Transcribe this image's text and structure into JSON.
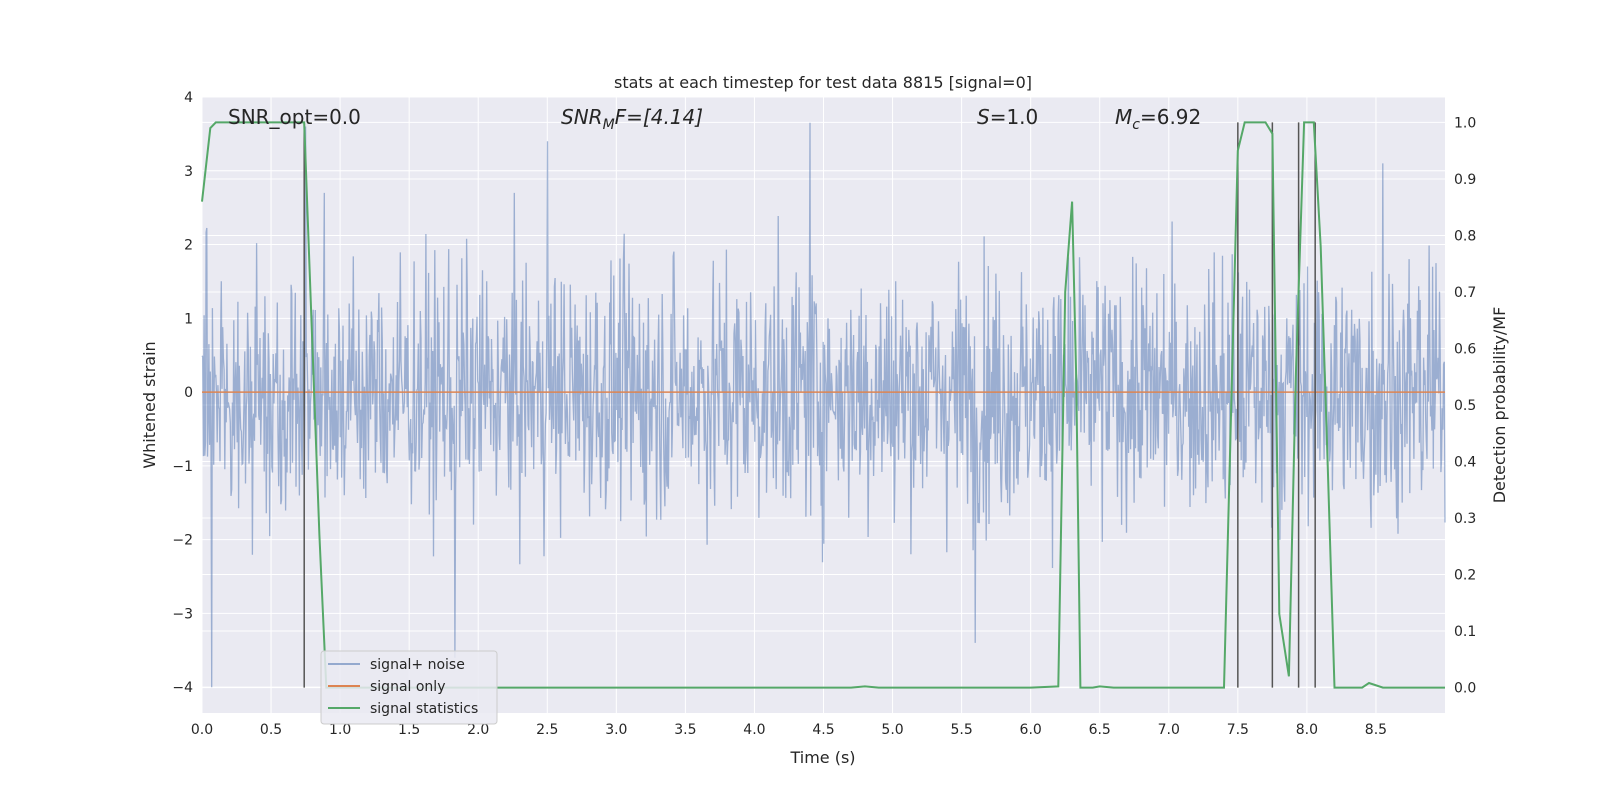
{
  "chart_data": {
    "type": "line",
    "title": "stats at each timestep for test data 8815 [signal=0]",
    "xlabel": "Time (s)",
    "ylabel": "Whitened strain",
    "ylabel_right": "Detection probability/MF",
    "xlim": [
      0,
      9.0
    ],
    "ylim": [
      -4.35,
      4.0
    ],
    "ylim_right": [
      -0.045,
      1.045
    ],
    "grid": true,
    "legend_position": "lower-left",
    "x_ticks": [
      "0.0",
      "0.5",
      "1.0",
      "1.5",
      "2.0",
      "2.5",
      "3.0",
      "3.5",
      "4.0",
      "4.5",
      "5.0",
      "5.5",
      "6.0",
      "6.5",
      "7.0",
      "7.5",
      "8.0",
      "8.5"
    ],
    "y_ticks": [
      "−4",
      "−3",
      "−2",
      "−1",
      "0",
      "1",
      "2",
      "3",
      "4"
    ],
    "y_ticks_right": [
      "0.0",
      "0.1",
      "0.2",
      "0.3",
      "0.4",
      "0.5",
      "0.6",
      "0.7",
      "0.8",
      "0.9",
      "1.0"
    ],
    "annotations": {
      "snr_opt": "SNR_opt=0.0",
      "snr_mf_main": "SNR",
      "snr_mf_sub": "M",
      "snr_mf_rest": "F=[4.14]",
      "s_main": "S",
      "s_rest": "=1.0",
      "mc_main": "M",
      "mc_sub": "c",
      "mc_rest": "=6.92"
    },
    "series": [
      {
        "name": "signal+ noise",
        "color": "#4c72b0",
        "description_axis": "left",
        "approx_envelope": [
          -2.0,
          2.2
        ],
        "extremes": [
          [
            0.07,
            -4.0
          ],
          [
            0.75,
            3.6
          ],
          [
            1.83,
            -3.6
          ],
          [
            2.5,
            3.4
          ],
          [
            4.4,
            3.65
          ],
          [
            5.6,
            -3.4
          ],
          [
            8.55,
            3.1
          ]
        ]
      },
      {
        "name": "signal only",
        "color": "#dd8452",
        "axis": "left",
        "x": [
          0.0,
          9.0
        ],
        "y": [
          0.0,
          0.0
        ]
      },
      {
        "name": "signal statistics",
        "color": "#55a868",
        "axis": "right",
        "x": [
          0.0,
          0.06,
          0.1,
          0.2,
          0.4,
          0.6,
          0.7,
          0.74,
          0.8,
          0.85,
          0.9,
          0.95,
          1.2,
          2.0,
          3.0,
          4.0,
          4.7,
          4.8,
          4.9,
          5.5,
          6.0,
          6.2,
          6.25,
          6.3,
          6.33,
          6.36,
          6.4,
          6.45,
          6.5,
          6.6,
          7.0,
          7.4,
          7.5,
          7.55,
          7.6,
          7.7,
          7.75,
          7.8,
          7.87,
          7.92,
          7.98,
          8.05,
          8.1,
          8.15,
          8.2,
          8.25,
          8.4,
          8.45,
          8.55,
          8.8,
          9.0
        ],
        "y": [
          0.86,
          0.99,
          1.0,
          1.0,
          1.0,
          1.0,
          1.0,
          1.0,
          0.6,
          0.27,
          0.0,
          0.0,
          0.0,
          0.0,
          0.0,
          0.0,
          0.0,
          0.002,
          0.0,
          0.0,
          0.0,
          0.002,
          0.7,
          0.86,
          0.55,
          0.0,
          0.0,
          0.0,
          0.002,
          0.0,
          0.0,
          0.0,
          0.95,
          1.0,
          1.0,
          1.0,
          0.98,
          0.13,
          0.02,
          0.55,
          1.0,
          1.0,
          0.78,
          0.4,
          0.0,
          0.0,
          0.0,
          0.008,
          0.0,
          0.0,
          0.0
        ]
      }
    ],
    "vertical_markers": [
      0.74,
      7.5,
      7.75,
      7.94,
      8.06
    ]
  }
}
